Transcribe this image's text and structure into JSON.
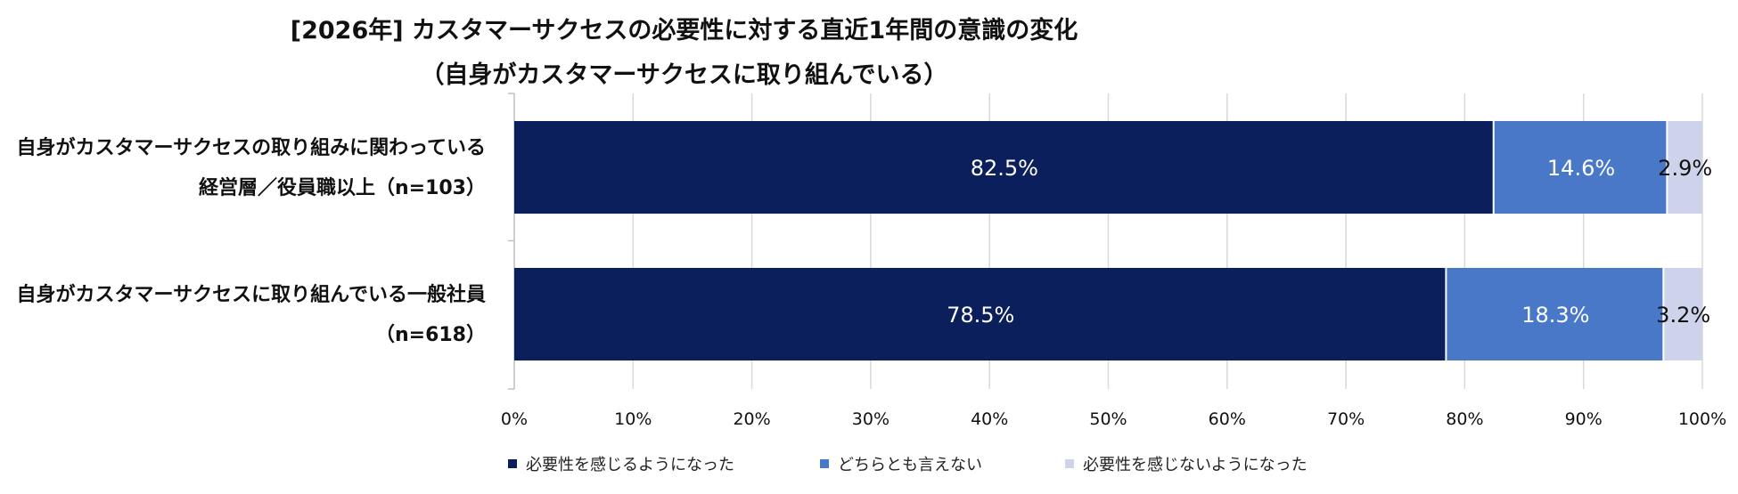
{
  "chart_data": {
    "type": "bar",
    "orientation": "horizontal",
    "stacked": true,
    "title": "[2026年] カスタマーサクセスの必要性に対する直近1年間の意識の変化",
    "subtitle": "（自身がカスタマーサクセスに取り組んでいる）",
    "categories": [
      [
        "自身がカスタマーサクセスの取り組みに関わっている",
        "経営層／役員職以上（n=103）"
      ],
      [
        "自身がカスタマーサクセスに取り組んでいる一般社員",
        "（n=618）"
      ]
    ],
    "series": [
      {
        "name": "必要性を感じるようになった",
        "values": [
          82.5,
          78.5
        ],
        "labels": [
          "82.5%",
          "78.5%"
        ],
        "color": "#0a1f5c",
        "label_color": "#ffffff"
      },
      {
        "name": "どちらとも言えない",
        "values": [
          14.6,
          18.3
        ],
        "labels": [
          "14.6%",
          "18.3%"
        ],
        "color": "#4a78c8",
        "label_color": "#ffffff"
      },
      {
        "name": "必要性を感じないようになった",
        "values": [
          2.9,
          3.2
        ],
        "labels": [
          "2.9%",
          "3.2%"
        ],
        "color": "#cdd3ea",
        "label_color": "#111111"
      }
    ],
    "xlim": [
      0,
      100
    ],
    "xticks": [
      "0%",
      "10%",
      "20%",
      "30%",
      "40%",
      "50%",
      "60%",
      "70%",
      "80%",
      "90%",
      "100%"
    ],
    "grid": true,
    "legend_position": "bottom"
  }
}
